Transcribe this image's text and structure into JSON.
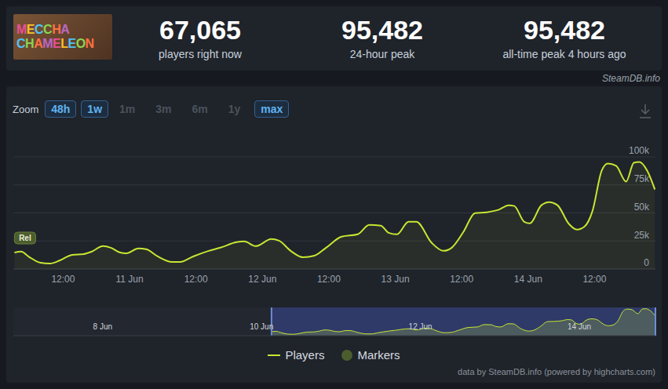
{
  "header": {
    "thumbnail": [
      "MECCHA",
      "CHAMELEON"
    ],
    "stats": [
      {
        "value": "67,065",
        "label": "players right now"
      },
      {
        "value": "95,482",
        "label": "24-hour peak"
      },
      {
        "value": "95,482",
        "label": "all-time peak 4 hours ago"
      }
    ],
    "source": "SteamDB.info"
  },
  "zoom": {
    "label": "Zoom",
    "buttons": [
      {
        "label": "48h",
        "active": true
      },
      {
        "label": "1w",
        "active": true
      },
      {
        "label": "1m",
        "active": false
      },
      {
        "label": "3m",
        "active": false
      },
      {
        "label": "6m",
        "active": false
      },
      {
        "label": "1y",
        "active": false
      },
      {
        "label": "max",
        "active": true
      }
    ]
  },
  "chart_data": {
    "type": "area",
    "x": [
      3.2,
      4.4,
      5.8,
      7.9,
      9.6,
      11.4,
      13.6,
      15.7,
      17.1,
      19.2,
      20.6,
      22.3,
      23.4,
      25.6,
      27.0,
      29.1,
      31.7,
      33.1,
      35.5,
      38.3,
      40.4,
      43.3,
      44.7,
      46.8,
      49.6,
      51.0,
      53.1,
      55.3,
      57.4,
      59.5,
      62.3,
      65.2,
      67.3,
      69.4,
      70.8,
      72.3,
      74.4,
      75.8,
      78.6,
      80.7,
      82.2,
      84.3,
      86.4,
      88.5,
      90.6,
      92.5,
      93.5,
      95.3,
      96.3,
      98.4,
      99.8,
      101.3,
      103.4,
      104.8,
      106.2,
      107.6,
      109.3,
      110.4,
      111.9,
      113.7,
      115.1,
      116.1,
      117.5,
      118.9
    ],
    "series": [
      {
        "name": "Players",
        "color": "#c8e632",
        "values": [
          14700,
          15500,
          11000,
          5600,
          4900,
          7700,
          12600,
          13300,
          15400,
          20400,
          19000,
          14700,
          14000,
          18300,
          17600,
          11200,
          6300,
          6300,
          11200,
          16200,
          19000,
          23900,
          24600,
          20400,
          26700,
          25300,
          16200,
          10500,
          11900,
          19000,
          28800,
          30900,
          39300,
          38600,
          32300,
          30900,
          42100,
          42100,
          23200,
          16200,
          19000,
          33000,
          49900,
          50600,
          52700,
          56900,
          56200,
          42100,
          40700,
          56900,
          59700,
          56900,
          40000,
          35100,
          37900,
          51300,
          87800,
          94100,
          92000,
          77900,
          94800,
          95482,
          87800,
          70900
        ]
      }
    ],
    "xlim": [
      3,
      119
    ],
    "xticks": [
      {
        "value": 12,
        "label": "12:00"
      },
      {
        "value": 24,
        "label": "11 Jun"
      },
      {
        "value": 36,
        "label": "12:00"
      },
      {
        "value": 48,
        "label": "12 Jun"
      },
      {
        "value": 60,
        "label": "12:00"
      },
      {
        "value": 72,
        "label": "13 Jun"
      },
      {
        "value": 84,
        "label": "12:00"
      },
      {
        "value": 96,
        "label": "14 Jun"
      },
      {
        "value": 108,
        "label": "12:00"
      }
    ],
    "ylim": [
      0,
      100000
    ],
    "yticks": [
      0,
      {
        "value": 25000,
        "label": "25k"
      },
      {
        "value": 50000,
        "label": "50k"
      },
      {
        "value": 75000,
        "label": "75k"
      },
      {
        "value": 100000,
        "label": "100k"
      }
    ],
    "grid": true,
    "legend": "bottom",
    "markers": {
      "name": "Markers",
      "color": "#4b5d2c",
      "items": [
        {
          "x": 3.2,
          "label": "Rel"
        }
      ]
    }
  },
  "navigator": {
    "xlim": [
      -75,
      119
    ],
    "xticks": [
      {
        "value": -48,
        "label": "8 Jun"
      },
      {
        "value": 0,
        "label": "10 Jun"
      },
      {
        "value": 48,
        "label": "12 Jun"
      },
      {
        "value": 96,
        "label": "14 Jun"
      }
    ]
  },
  "footer": "data by SteamDB.info (powered by highcharts.com)"
}
